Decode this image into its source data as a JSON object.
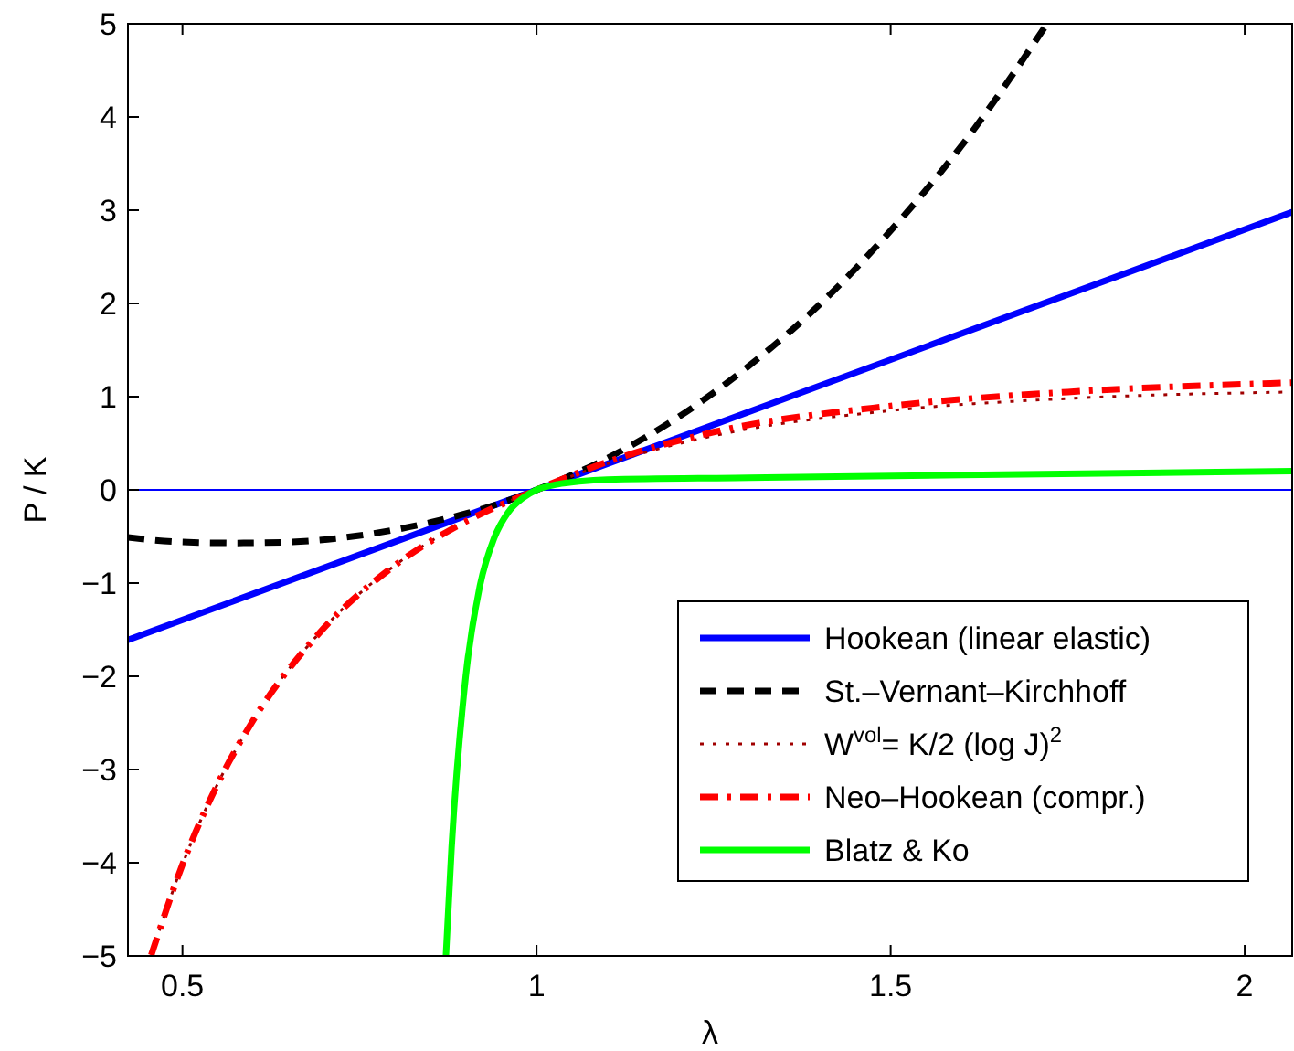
{
  "chart_data": {
    "type": "line",
    "xlabel": "λ",
    "ylabel": "P / K",
    "xlim": [
      0.423,
      2.067
    ],
    "ylim": [
      -5,
      5
    ],
    "xticks": [
      0.5,
      1,
      1.5,
      2
    ],
    "yticks": [
      -5,
      -4,
      -3,
      -2,
      -1,
      0,
      1,
      2,
      3,
      4,
      5
    ],
    "grid": false,
    "legend": "bottom right",
    "marker": "none",
    "ref_lines": [
      {
        "axis": "y",
        "value": 0,
        "color": "#0000ff"
      }
    ],
    "series": [
      {
        "name": "Hookean (linear elastic)",
        "color": "#0000ff",
        "line_style": "solid",
        "x": [
          0.423,
          1,
          2.067
        ],
        "values": [
          -1.61,
          0,
          2.98
        ]
      },
      {
        "name": "St.–Vernant–Kirchhoff",
        "color": "#000000",
        "line_style": "dashed",
        "x": [
          0.423,
          0.5,
          0.577,
          0.65,
          0.75,
          0.85,
          0.95,
          1,
          1.1,
          1.2,
          1.3,
          1.4,
          1.5,
          1.6,
          1.72
        ],
        "values": [
          -0.51,
          -0.56,
          -0.57,
          -0.56,
          -0.49,
          -0.35,
          -0.14,
          0,
          0.34,
          0.78,
          1.33,
          1.99,
          2.78,
          3.69,
          4.99
        ]
      },
      {
        "name": "W$^{vol}$= K/2 (log J)$^{2}$",
        "color": "#a00000",
        "line_style": "dotted",
        "x": [
          0.456,
          0.5,
          0.55,
          0.6,
          0.7,
          0.8,
          0.9,
          1,
          1.1,
          1.25,
          1.5,
          1.75,
          2.067
        ],
        "values": [
          -4.99,
          -4.02,
          -3.15,
          -2.47,
          -1.48,
          -0.81,
          -0.34,
          0,
          0.28,
          0.58,
          0.85,
          0.98,
          1.05
        ]
      },
      {
        "name": "Neo–Hookean (compr.)",
        "color": "#ff0000",
        "line_style": "dashdot",
        "x": [
          0.456,
          0.5,
          0.55,
          0.6,
          0.7,
          0.8,
          0.9,
          1,
          1.1,
          1.25,
          1.5,
          1.75,
          2.067
        ],
        "values": [
          -4.99,
          -4.02,
          -3.15,
          -2.47,
          -1.48,
          -0.81,
          -0.34,
          0,
          0.3,
          0.62,
          0.9,
          1.05,
          1.15
        ]
      },
      {
        "name": "Blatz & Ko",
        "color": "#00ff00",
        "line_style": "solid",
        "x": [
          0.872,
          0.88,
          0.9,
          0.92,
          0.94,
          0.96,
          0.98,
          1,
          1.03,
          1.06,
          1.1,
          1.3,
          1.6,
          2.067
        ],
        "values": [
          -5,
          -3.84,
          -2,
          -1.03,
          -0.52,
          -0.24,
          -0.09,
          0,
          0.06,
          0.09,
          0.11,
          0.13,
          0.16,
          0.2
        ]
      }
    ]
  }
}
